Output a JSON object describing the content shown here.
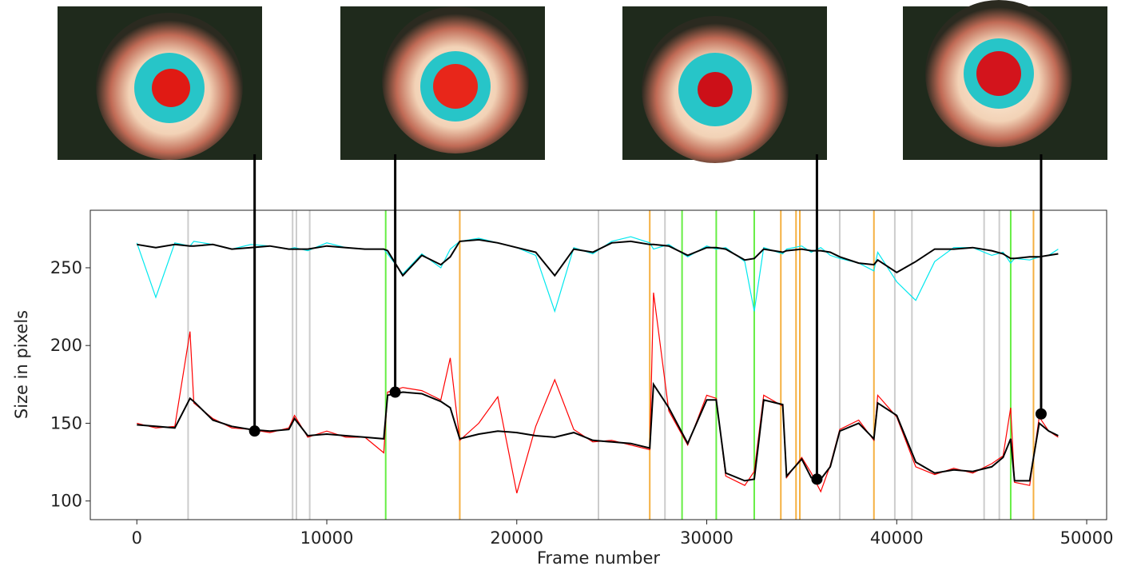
{
  "chart_data": {
    "type": "line",
    "x_label": "Frame number",
    "y_label": "Size in pixels",
    "xlim": [
      -2450,
      51050
    ],
    "ylim": [
      88,
      287
    ],
    "xticks": [
      0,
      10000,
      20000,
      30000,
      40000,
      50000
    ],
    "yticks": [
      100,
      150,
      200,
      250
    ],
    "x": [
      0,
      1000,
      2000,
      2800,
      3000,
      4000,
      5000,
      6000,
      7000,
      8000,
      8300,
      9000,
      10000,
      11000,
      12000,
      13000,
      13200,
      14000,
      15000,
      16000,
      16500,
      17000,
      18000,
      19000,
      20000,
      21000,
      22000,
      23000,
      24000,
      25000,
      26000,
      27000,
      27200,
      28000,
      29000,
      30000,
      30500,
      31000,
      32000,
      32500,
      33000,
      34000,
      34200,
      35000,
      35500,
      36000,
      36500,
      37000,
      38000,
      38800,
      39000,
      40000,
      41000,
      42000,
      43000,
      44000,
      45000,
      45600,
      46000,
      46200,
      47000,
      47500,
      48000,
      48500
    ],
    "series": [
      {
        "color": "#00e8ee",
        "width": 1.2,
        "values": [
          266,
          231,
          266,
          264,
          267,
          265,
          262,
          265,
          264,
          262,
          263,
          261,
          266,
          263,
          262,
          262,
          259,
          246,
          259,
          250,
          262,
          267,
          269,
          266,
          263,
          258,
          222,
          263,
          259,
          267,
          270,
          266,
          262,
          265,
          257,
          264,
          262,
          263,
          254,
          222,
          263,
          259,
          262,
          264,
          260,
          263,
          258,
          256,
          253,
          248,
          260,
          241,
          229,
          254,
          263,
          263,
          258,
          260,
          253,
          256,
          255,
          257,
          258,
          262
        ]
      },
      {
        "color": "#000000",
        "width": 2,
        "values": [
          265,
          263,
          265,
          264,
          264,
          265,
          262,
          263,
          264,
          262,
          262,
          262,
          264,
          263,
          262,
          262,
          261,
          245,
          258,
          252,
          257,
          267,
          268,
          266,
          263,
          260,
          245,
          262,
          260,
          266,
          267,
          265,
          265,
          264,
          258,
          263,
          263,
          262,
          255,
          256,
          262,
          260,
          261,
          262,
          261,
          261,
          260,
          257,
          253,
          252,
          255,
          247,
          254,
          262,
          262,
          263,
          261,
          259,
          256,
          256,
          257,
          257,
          258,
          259
        ]
      },
      {
        "color": "#ff0000",
        "width": 1.2,
        "values": [
          150,
          147,
          148,
          209,
          163,
          153,
          147,
          146,
          144,
          147,
          155,
          141,
          145,
          141,
          141,
          131,
          170,
          173,
          171,
          165,
          192,
          139,
          150,
          167,
          105,
          148,
          178,
          146,
          138,
          139,
          136,
          133,
          234,
          158,
          136,
          168,
          166,
          116,
          110,
          119,
          168,
          161,
          115,
          128,
          118,
          106,
          123,
          146,
          152,
          139,
          168,
          154,
          122,
          117,
          121,
          118,
          124,
          129,
          160,
          112,
          110,
          154,
          145,
          141
        ]
      },
      {
        "color": "#000000",
        "width": 2,
        "values": [
          149,
          148,
          147,
          166,
          164,
          152,
          148,
          146,
          145,
          146,
          153,
          142,
          143,
          142,
          141,
          140,
          168,
          170,
          169,
          164,
          160,
          140,
          143,
          145,
          144,
          142,
          141,
          144,
          139,
          138,
          137,
          134,
          175,
          160,
          137,
          165,
          165,
          118,
          113,
          114,
          165,
          162,
          116,
          127,
          115,
          114,
          122,
          145,
          150,
          140,
          163,
          155,
          125,
          118,
          120,
          119,
          122,
          128,
          140,
          113,
          113,
          150,
          145,
          142
        ]
      }
    ],
    "events": [
      {
        "color": "#cccccc",
        "x": [
          2700,
          8200,
          8400,
          9100,
          24300,
          27800,
          37000,
          39900,
          40800,
          44600,
          45400
        ]
      },
      {
        "color": "#f5b041",
        "x": [
          17000,
          27000,
          33900,
          34700,
          34900,
          38800,
          47200
        ]
      },
      {
        "color": "#66ee44",
        "x": [
          13100,
          28700,
          30500,
          32500,
          46000
        ]
      }
    ],
    "callouts": [
      {
        "x": 6200,
        "y": 145
      },
      {
        "x": 13600,
        "y": 170
      },
      {
        "x": 35800,
        "y": 114
      },
      {
        "x": 47600,
        "y": 156
      }
    ]
  }
}
